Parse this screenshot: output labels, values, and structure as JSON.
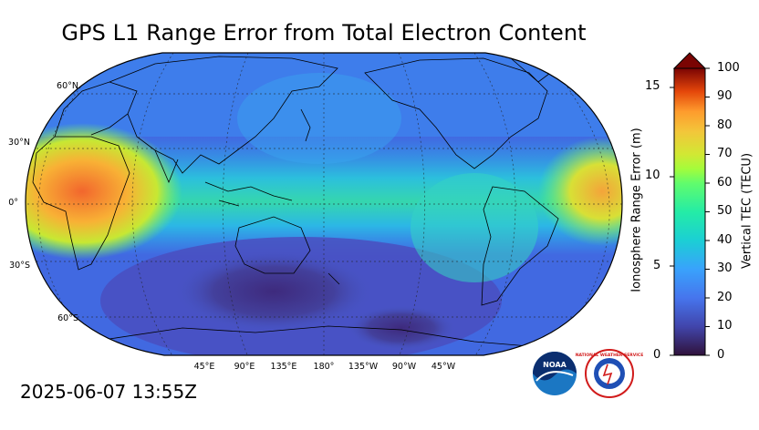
{
  "title": "GPS L1 Range Error from Total Electron Content",
  "timestamp": "2025-06-07 13:55Z",
  "map": {
    "projection": "Robinson",
    "lat_labels": [
      "60°N",
      "30°N",
      "0°",
      "30°S",
      "60°S"
    ],
    "lon_labels": [
      "45°E",
      "90°E",
      "135°E",
      "180°",
      "135°W",
      "90°W",
      "45°W"
    ]
  },
  "colorbar": {
    "left_axis_label": "Ionosphere Range Error (m)",
    "left_ticks": [
      "0",
      "5",
      "10",
      "15"
    ],
    "right_axis_label": "Vertical TEC (TECU)",
    "right_ticks": [
      "0",
      "10",
      "20",
      "30",
      "40",
      "50",
      "60",
      "70",
      "80",
      "90",
      "100"
    ],
    "extend": "max"
  },
  "logos": {
    "noaa": "NOAA",
    "nws": "NATIONAL WEATHER SERVICE"
  },
  "colors": {
    "low": "#30123b",
    "mid": "#1ae4b6",
    "high": "#7a0403",
    "background": "#ffffff"
  }
}
